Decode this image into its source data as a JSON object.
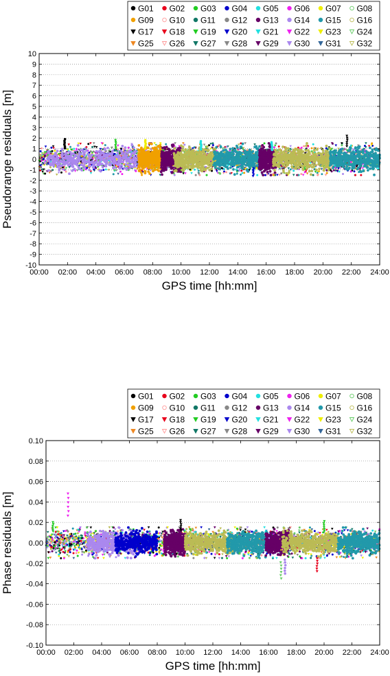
{
  "satellites": [
    "G01",
    "G02",
    "G03",
    "G04",
    "G05",
    "G06",
    "G07",
    "G08",
    "G09",
    "G10",
    "G11",
    "G12",
    "G13",
    "G14",
    "G15",
    "G16",
    "G17",
    "G18",
    "G19",
    "G20",
    "G21",
    "G22",
    "G23",
    "G24",
    "G25",
    "G26",
    "G27",
    "G28",
    "G29",
    "G30",
    "G31",
    "G32"
  ],
  "sat_colors": [
    "#000000",
    "#e8001c",
    "#22cc22",
    "#0000cc",
    "#22e0e0",
    "#ee22ee",
    "#eeee00",
    "#66cc66",
    "#f0a000",
    "#ff9999",
    "#117766",
    "#888888",
    "#660066",
    "#aa88ee",
    "#2299aa",
    "#bbbb55",
    "#000000",
    "#e8001c",
    "#22cc22",
    "#0000cc",
    "#22e0e0",
    "#ee22ee",
    "#eeee00",
    "#66cc66",
    "#ee8822",
    "#ff9999",
    "#117766",
    "#888888",
    "#660066",
    "#aa88ee",
    "#336699",
    "#bbbb55"
  ],
  "chart_data": [
    {
      "type": "scatter",
      "title": "",
      "xlabel": "GPS time [hh:mm]",
      "ylabel": "Pseudorange residuals [m]",
      "xlim": [
        0,
        24
      ],
      "ylim": [
        -10,
        10
      ],
      "xticks": [
        "00:00",
        "02:00",
        "04:00",
        "06:00",
        "08:00",
        "10:00",
        "12:00",
        "14:00",
        "16:00",
        "18:00",
        "20:00",
        "22:00",
        "24:00"
      ],
      "yticks": [
        "-10",
        "-9",
        "-8",
        "-7",
        "-6",
        "-5",
        "-4",
        "-3",
        "-2",
        "-1",
        "0",
        "1",
        "2",
        "3",
        "4",
        "5",
        "6",
        "7",
        "8",
        "9",
        "10"
      ],
      "grid": "horizontal dotted",
      "legend_position": "top-right",
      "residual_band": [
        -1.5,
        1.5
      ],
      "spikes": [
        [
          1.8,
          1.9,
          "G01"
        ],
        [
          5.4,
          1.8,
          "G19"
        ],
        [
          7.5,
          1.8,
          "G07"
        ],
        [
          11.4,
          1.7,
          "G05"
        ],
        [
          16.4,
          1.6,
          "G05"
        ],
        [
          21.7,
          2.2,
          "G17"
        ],
        [
          15.1,
          -1.6,
          "G20"
        ]
      ]
    },
    {
      "type": "scatter",
      "title": "",
      "xlabel": "GPS time [hh:mm]",
      "ylabel": "Phase residuals [m]",
      "xlim": [
        0,
        24
      ],
      "ylim": [
        -0.1,
        0.1
      ],
      "xticks": [
        "00:00",
        "02:00",
        "04:00",
        "06:00",
        "08:00",
        "10:00",
        "12:00",
        "14:00",
        "16:00",
        "18:00",
        "20:00",
        "22:00",
        "24:00"
      ],
      "yticks": [
        "-0.10",
        "-0.08",
        "-0.06",
        "-0.04",
        "-0.02",
        "0.00",
        "0.02",
        "0.04",
        "0.06",
        "0.08",
        "0.10"
      ],
      "grid": "horizontal dotted",
      "legend_position": "top-right",
      "residual_band": [
        -0.015,
        0.015
      ],
      "spikes": [
        [
          1.6,
          0.048,
          "G22"
        ],
        [
          9.7,
          0.022,
          "G17"
        ],
        [
          20.0,
          0.021,
          "G19"
        ],
        [
          16.9,
          -0.035,
          "G24"
        ],
        [
          17.2,
          -0.03,
          "G14"
        ],
        [
          19.5,
          -0.028,
          "G18"
        ],
        [
          0.5,
          0.02,
          "G19"
        ]
      ]
    }
  ]
}
